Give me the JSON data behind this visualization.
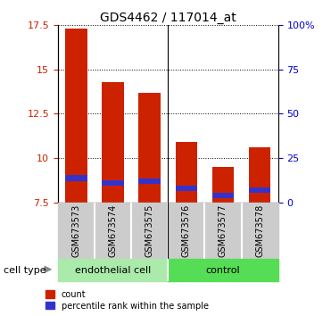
{
  "title": "GDS4462 / 117014_at",
  "categories": [
    "GSM673573",
    "GSM673574",
    "GSM673575",
    "GSM673576",
    "GSM673577",
    "GSM673578"
  ],
  "bar_bottom": 7.5,
  "red_tops": [
    17.3,
    14.3,
    13.7,
    10.9,
    9.5,
    10.6
  ],
  "blue_tops": [
    9.05,
    8.75,
    8.85,
    8.45,
    8.05,
    8.35
  ],
  "blue_bottoms": [
    8.7,
    8.45,
    8.55,
    8.15,
    7.75,
    8.05
  ],
  "group_labels": [
    "endothelial cell",
    "control"
  ],
  "group_split": 3,
  "group_bg_color1": "#AAEAAA",
  "group_bg_color2": "#55DD55",
  "ylim_left": [
    7.5,
    17.5
  ],
  "ylim_right": [
    0,
    100
  ],
  "yticks_left": [
    7.5,
    10.0,
    12.5,
    15.0,
    17.5
  ],
  "yticks_right": [
    0,
    25,
    50,
    75,
    100
  ],
  "ytick_labels_left": [
    "7.5",
    "10",
    "12.5",
    "15",
    "17.5"
  ],
  "ytick_labels_right": [
    "0",
    "25",
    "50",
    "75",
    "100%"
  ],
  "left_axis_color": "#CC2200",
  "right_axis_color": "#0000CC",
  "bar_color_red": "#CC2200",
  "bar_color_blue": "#3333CC",
  "plot_bg": "#FFFFFF",
  "grid_color": "#000000",
  "sample_box_color": "#CCCCCC",
  "cell_type_label": "cell type",
  "legend_count": "count",
  "legend_percentile": "percentile rank within the sample"
}
